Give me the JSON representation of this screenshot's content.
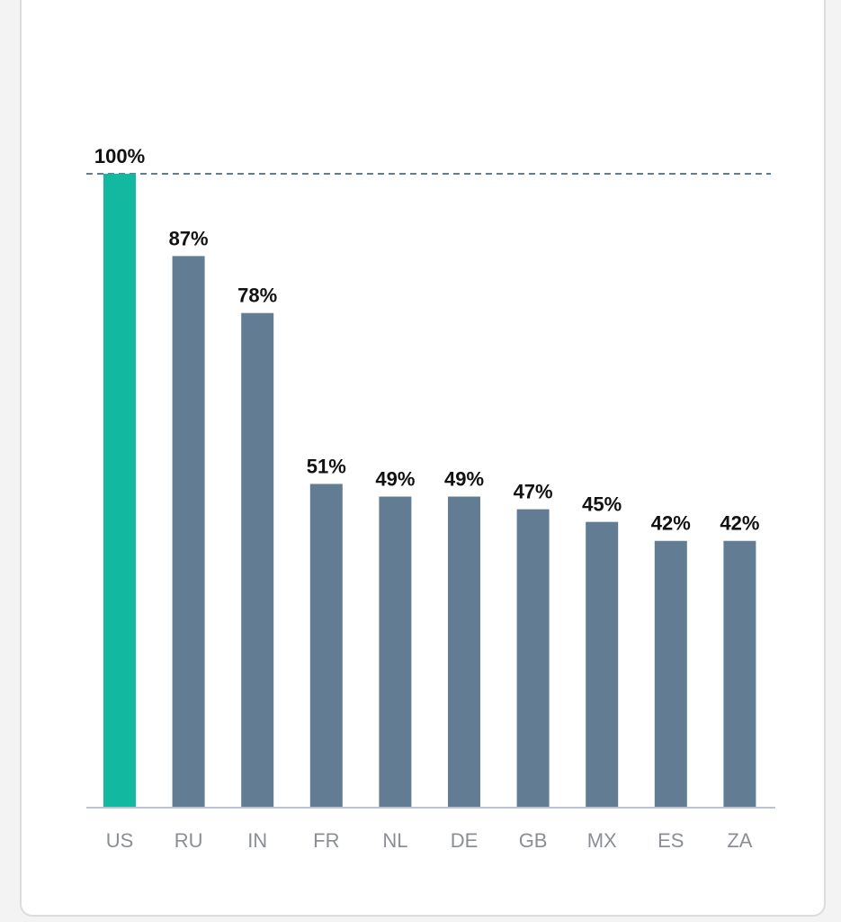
{
  "colors": {
    "highlight": "#13b8a0",
    "bar": "#627c93",
    "reference_line": "#627c93",
    "axis": "#b8c4d2",
    "background": "#ffffff"
  },
  "chart_data": {
    "type": "bar",
    "title": "",
    "xlabel": "",
    "ylabel": "",
    "ylim": [
      0,
      100
    ],
    "grid": false,
    "legend": "none",
    "categories": [
      "US",
      "RU",
      "IN",
      "FR",
      "NL",
      "DE",
      "GB",
      "MX",
      "ES",
      "ZA"
    ],
    "values": [
      100,
      87,
      78,
      51,
      49,
      49,
      47,
      45,
      42,
      42
    ],
    "value_labels": [
      "100%",
      "87%",
      "78%",
      "51%",
      "49%",
      "49%",
      "47%",
      "45%",
      "42%",
      "42%"
    ],
    "highlighted_category": "US",
    "reference_line_value": 100
  }
}
